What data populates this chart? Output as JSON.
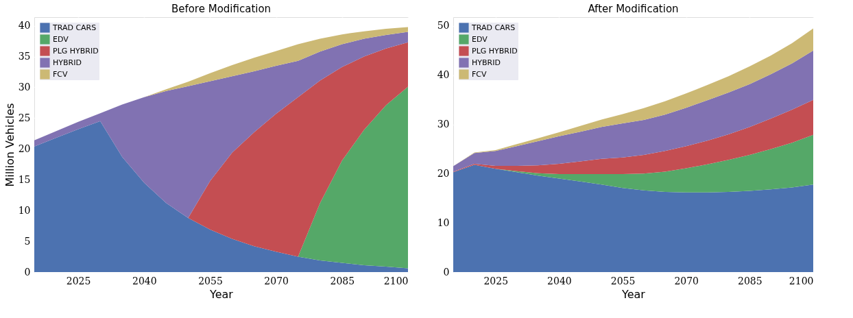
{
  "chart_data": [
    {
      "type": "area",
      "title": "Before Modification",
      "xlabel": "Year",
      "ylabel": "Million Vehicles",
      "stacked": true,
      "grid": true,
      "legend": "top left",
      "x": [
        2015,
        2020,
        2025,
        2030,
        2035,
        2040,
        2045,
        2050,
        2055,
        2060,
        2065,
        2070,
        2075,
        2080,
        2085,
        2090,
        2095,
        2100
      ],
      "xlim": [
        2015,
        2100
      ],
      "xticks": [
        2025,
        2040,
        2055,
        2070,
        2085,
        2100
      ],
      "ylim": [
        0,
        41.4
      ],
      "yticks": [
        0,
        5,
        10,
        15,
        20,
        25,
        30,
        35,
        40
      ],
      "series": [
        {
          "name": "TRAD CARS",
          "color": "#4c72b0",
          "values": [
            20.4,
            21.8,
            23.2,
            24.5,
            18.7,
            14.5,
            11.2,
            8.8,
            6.9,
            5.4,
            4.2,
            3.3,
            2.5,
            1.9,
            1.5,
            1.1,
            0.9,
            0.6
          ]
        },
        {
          "name": "EDV",
          "color": "#55a868",
          "values": [
            0,
            0,
            0,
            0,
            0,
            0,
            0,
            0,
            0,
            0,
            0,
            0,
            0,
            9.3,
            16.6,
            22.0,
            26.2,
            29.5
          ]
        },
        {
          "name": "PLG HYBRID",
          "color": "#c44e52",
          "values": [
            0,
            0,
            0,
            0,
            0,
            0,
            0,
            0,
            7.9,
            14.0,
            18.5,
            22.4,
            25.9,
            19.9,
            15.2,
            11.9,
            9.2,
            7.2
          ]
        },
        {
          "name": "HYBRID",
          "color": "#8172b2",
          "values": [
            1.0,
            1.1,
            1.2,
            1.3,
            8.5,
            13.9,
            18.2,
            21.4,
            16.2,
            12.4,
            9.9,
            7.8,
            5.9,
            4.7,
            3.7,
            2.9,
            2.2,
            1.7
          ]
        },
        {
          "name": "FCV",
          "color": "#ccb974",
          "values": [
            0,
            0,
            0,
            0,
            0,
            0,
            0.3,
            0.7,
            1.3,
            1.8,
            2.2,
            2.4,
            2.7,
            2.1,
            1.6,
            1.2,
            1.0,
            0.8
          ]
        }
      ]
    },
    {
      "type": "area",
      "title": "After Modification",
      "xlabel": "Year",
      "stacked": true,
      "grid": true,
      "legend": "top left",
      "x": [
        2015,
        2020,
        2025,
        2030,
        2035,
        2040,
        2045,
        2050,
        2055,
        2060,
        2065,
        2070,
        2075,
        2080,
        2085,
        2090,
        2095,
        2100
      ],
      "xlim": [
        2015,
        2100
      ],
      "xticks": [
        2025,
        2040,
        2055,
        2070,
        2085,
        2100
      ],
      "ylim": [
        0,
        51.8
      ],
      "yticks": [
        0,
        10,
        20,
        30,
        40,
        50
      ],
      "series": [
        {
          "name": "TRAD CARS",
          "color": "#4c72b0",
          "values": [
            20.3,
            21.8,
            21.0,
            20.3,
            19.6,
            19.0,
            18.4,
            17.8,
            17.1,
            16.6,
            16.3,
            16.2,
            16.2,
            16.3,
            16.5,
            16.8,
            17.2,
            17.8
          ]
        },
        {
          "name": "EDV",
          "color": "#55a868",
          "values": [
            0,
            0,
            0,
            0.2,
            0.5,
            0.9,
            1.5,
            2.1,
            2.8,
            3.4,
            4.1,
            4.9,
            5.7,
            6.5,
            7.3,
            8.2,
            9.1,
            10.1
          ]
        },
        {
          "name": "PLG HYBRID",
          "color": "#c44e52",
          "values": [
            0.1,
            0.2,
            0.6,
            1.1,
            1.6,
            2.1,
            2.6,
            3.1,
            3.4,
            3.8,
            4.2,
            4.5,
            4.8,
            5.2,
            5.7,
            6.2,
            6.7,
            7.1
          ]
        },
        {
          "name": "HYBRID",
          "color": "#8172b2",
          "values": [
            1.1,
            2.2,
            3.0,
            4.0,
            4.9,
            5.6,
            6.0,
            6.5,
            6.9,
            7.1,
            7.4,
            7.8,
            8.2,
            8.5,
            8.7,
            9.0,
            9.4,
            10.0
          ]
        },
        {
          "name": "FCV",
          "color": "#ccb974",
          "values": [
            0,
            0.1,
            0.2,
            0.4,
            0.6,
            0.8,
            1.2,
            1.5,
            1.9,
            2.4,
            2.7,
            2.9,
            3.1,
            3.3,
            3.6,
            3.8,
            4.1,
            4.5
          ]
        }
      ]
    }
  ]
}
